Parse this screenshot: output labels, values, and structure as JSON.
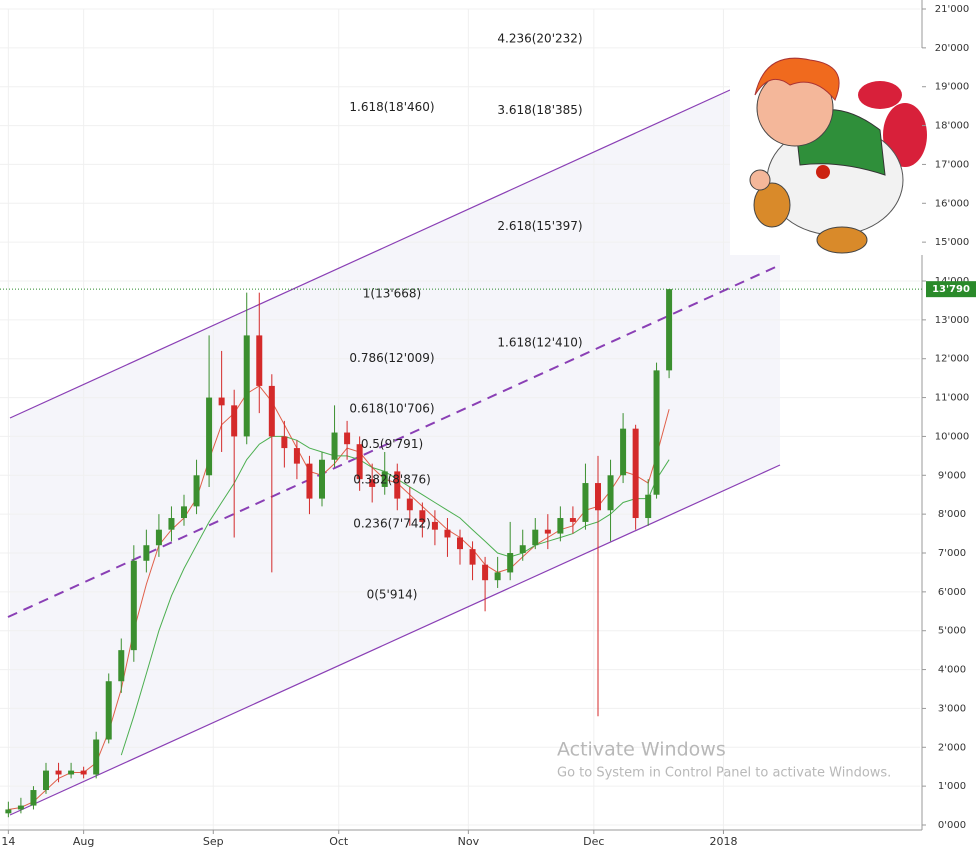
{
  "chart_data": {
    "type": "candlestick",
    "x": [
      0,
      3,
      6,
      9,
      12,
      15,
      18,
      21,
      24,
      27,
      30,
      33,
      36,
      39,
      42,
      45,
      48,
      51,
      54,
      57,
      60,
      63,
      66,
      69,
      72,
      75,
      78,
      81,
      84,
      87,
      90,
      93,
      96,
      99,
      102,
      105,
      108,
      111,
      114,
      117,
      120,
      123,
      126,
      129,
      132,
      135,
      138,
      141,
      144,
      147,
      150,
      153,
      155,
      158
    ],
    "open": [
      300,
      400,
      500,
      900,
      1400,
      1300,
      1400,
      1300,
      2200,
      3700,
      4500,
      6800,
      7200,
      7600,
      7900,
      8200,
      9000,
      11000,
      10800,
      10000,
      12600,
      11300,
      10000,
      9700,
      9300,
      8400,
      9400,
      10100,
      9800,
      8900,
      8700,
      9100,
      8400,
      8100,
      7800,
      7600,
      7400,
      7100,
      6700,
      6300,
      6500,
      7000,
      7200,
      7600,
      7500,
      7900,
      7800,
      8800,
      8100,
      9000,
      10200,
      7900,
      8500,
      11700
    ],
    "high": [
      600,
      700,
      1000,
      1600,
      1600,
      1600,
      1500,
      2400,
      3900,
      4800,
      7200,
      7600,
      8000,
      8200,
      8500,
      9400,
      12600,
      12200,
      11200,
      13700,
      13700,
      11600,
      10400,
      9900,
      9500,
      9600,
      10800,
      10400,
      10000,
      9300,
      9600,
      9300,
      8700,
      8300,
      8100,
      7900,
      7600,
      7300,
      6900,
      6900,
      7800,
      7600,
      7900,
      8000,
      8200,
      8200,
      9300,
      9500,
      9400,
      10600,
      10300,
      8900,
      11900,
      13790
    ],
    "low": [
      200,
      300,
      400,
      800,
      1100,
      1200,
      1200,
      1200,
      2100,
      3400,
      4200,
      6500,
      6900,
      7300,
      7700,
      8000,
      8700,
      9600,
      7400,
      9800,
      10600,
      6500,
      9200,
      8900,
      8000,
      8200,
      9200,
      9400,
      8600,
      8300,
      8500,
      8100,
      7700,
      7400,
      7200,
      6900,
      6700,
      6300,
      5500,
      6100,
      6300,
      6800,
      7100,
      7100,
      7300,
      7500,
      7600,
      2800,
      7300,
      8800,
      7600,
      7700,
      8400,
      11500
    ],
    "close": [
      400,
      500,
      900,
      1400,
      1300,
      1400,
      1300,
      2200,
      3700,
      4500,
      6800,
      7200,
      7600,
      7900,
      8200,
      9000,
      11000,
      10800,
      10000,
      12600,
      11300,
      10000,
      9700,
      9300,
      8400,
      9400,
      10100,
      9800,
      8900,
      8700,
      9100,
      8400,
      8100,
      7800,
      7600,
      7400,
      7100,
      6700,
      6300,
      6500,
      7000,
      7200,
      7600,
      7500,
      7900,
      7800,
      8800,
      8100,
      9000,
      10200,
      7900,
      8500,
      11700,
      13790
    ],
    "up_color": "#3b8f2f",
    "down_color": "#d42a2a",
    "overlays": [
      {
        "color": "#e0604a",
        "values": [
          400,
          450,
          600,
          900,
          1200,
          1350,
          1350,
          1600,
          2400,
          3500,
          5000,
          6200,
          7200,
          7600,
          7900,
          8400,
          9400,
          10300,
          10600,
          11100,
          11300,
          10900,
          10300,
          9700,
          9100,
          9000,
          9300,
          9700,
          9600,
          9200,
          8900,
          8800,
          8500,
          8200,
          7900,
          7600,
          7400,
          7100,
          6700,
          6500,
          6600,
          6900,
          7200,
          7400,
          7600,
          7700,
          8100,
          8200,
          8600,
          9100,
          9000,
          8800,
          9500,
          10700
        ]
      },
      {
        "color": "#4caf50",
        "values": [
          null,
          null,
          null,
          null,
          null,
          null,
          null,
          null,
          null,
          1800,
          2800,
          3900,
          5000,
          5900,
          6600,
          7200,
          7800,
          8300,
          8800,
          9400,
          9800,
          10000,
          10000,
          9900,
          9700,
          9600,
          9500,
          9500,
          9400,
          9200,
          9100,
          8900,
          8700,
          8500,
          8300,
          8100,
          7900,
          7600,
          7300,
          7000,
          6900,
          7000,
          7200,
          7300,
          7400,
          7500,
          7700,
          7800,
          8000,
          8300,
          8400,
          8400,
          8900,
          9400
        ]
      }
    ],
    "xlim": [
      -2,
      218
    ],
    "xticks": [
      {
        "value": 0,
        "label": "14"
      },
      {
        "value": 18,
        "label": "Aug"
      },
      {
        "value": 49,
        "label": "Sep"
      },
      {
        "value": 79,
        "label": "Oct"
      },
      {
        "value": 110,
        "label": "Nov"
      },
      {
        "value": 140,
        "label": "Dec"
      },
      {
        "value": 171,
        "label": "2018"
      }
    ],
    "ylim": [
      0,
      21000
    ],
    "yticks": [
      {
        "value": 0,
        "label": "0'000"
      },
      {
        "value": 1000,
        "label": "1'000"
      },
      {
        "value": 2000,
        "label": "2'000"
      },
      {
        "value": 3000,
        "label": "3'000"
      },
      {
        "value": 4000,
        "label": "4'000"
      },
      {
        "value": 5000,
        "label": "5'000"
      },
      {
        "value": 6000,
        "label": "6'000"
      },
      {
        "value": 7000,
        "label": "7'000"
      },
      {
        "value": 8000,
        "label": "8'000"
      },
      {
        "value": 9000,
        "label": "9'000"
      },
      {
        "value": 10000,
        "label": "10'000"
      },
      {
        "value": 11000,
        "label": "11'000"
      },
      {
        "value": 12000,
        "label": "12'000"
      },
      {
        "value": 13000,
        "label": "13'000"
      },
      {
        "value": 14000,
        "label": "14'000"
      },
      {
        "value": 15000,
        "label": "15'000"
      },
      {
        "value": 16000,
        "label": "16'000"
      },
      {
        "value": 17000,
        "label": "17'000"
      },
      {
        "value": 18000,
        "label": "18'000"
      },
      {
        "value": 19000,
        "label": "19'000"
      },
      {
        "value": 20000,
        "label": "20'000"
      },
      {
        "value": 21000,
        "label": "21'000"
      }
    ],
    "grid": true,
    "last_price": {
      "value": 13790,
      "label": "13'790"
    },
    "fib_retracement": [
      {
        "value": 18460,
        "label": "1.618(18'460)"
      },
      {
        "value": 13668,
        "label": "1(13'668)"
      },
      {
        "value": 12009,
        "label": "0.786(12'009)"
      },
      {
        "value": 10706,
        "label": "0.618(10'706)"
      },
      {
        "value": 9791,
        "label": "0.5(9'791)"
      },
      {
        "value": 8876,
        "label": "0.382(8'876)"
      },
      {
        "value": 7742,
        "label": "0.236(7'742)"
      },
      {
        "value": 5914,
        "label": "0(5'914)"
      }
    ],
    "fib_extension": [
      {
        "value": 20232,
        "label": "4.236(20'232)"
      },
      {
        "value": 18385,
        "label": "3.618(18'385)"
      },
      {
        "value": 15397,
        "label": "2.618(15'397)"
      },
      {
        "value": 12410,
        "label": "1.618(12'410)"
      }
    ]
  },
  "watermark": {
    "title": "Activate Windows",
    "subtitle": "Go to System in Control Panel to activate Windows."
  }
}
